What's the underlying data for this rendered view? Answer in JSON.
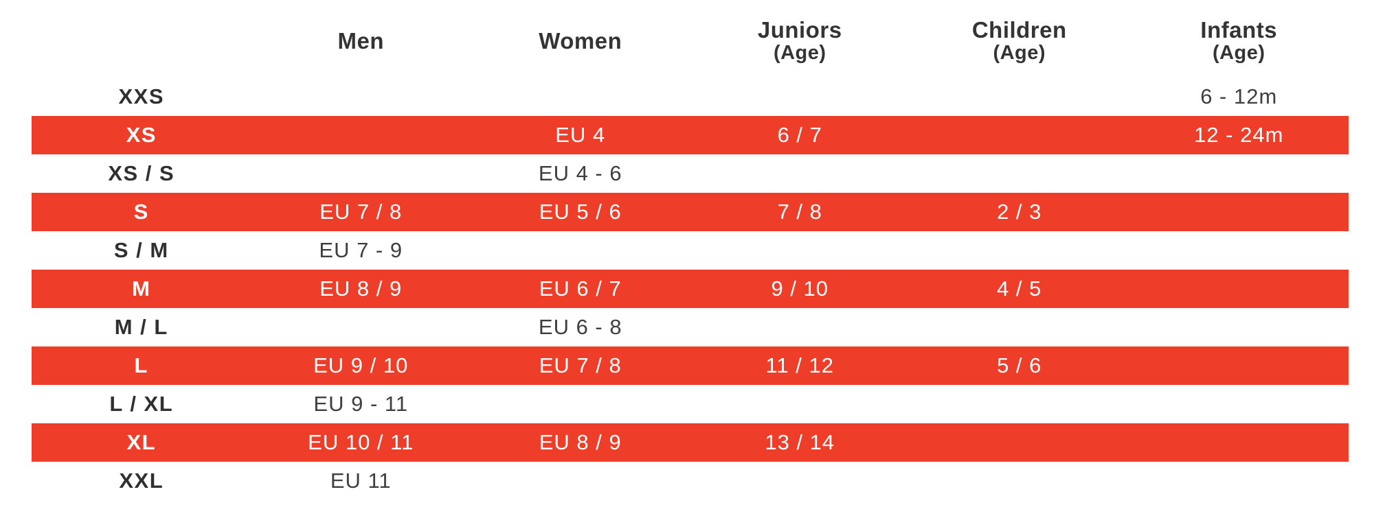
{
  "accent_color": "#EE3E29",
  "text_color": "#3E3E3E",
  "chart_data": {
    "type": "table",
    "columns": [
      {
        "label": "",
        "sublabel": ""
      },
      {
        "label": "Men",
        "sublabel": ""
      },
      {
        "label": "Women",
        "sublabel": ""
      },
      {
        "label": "Juniors",
        "sublabel": "(Age)"
      },
      {
        "label": "Children",
        "sublabel": "(Age)"
      },
      {
        "label": "Infants",
        "sublabel": "(Age)"
      }
    ],
    "rows": [
      {
        "size": "XXS",
        "highlighted": false,
        "values": [
          "",
          "",
          "",
          "",
          "6 - 12m"
        ]
      },
      {
        "size": "XS",
        "highlighted": true,
        "values": [
          "",
          "EU 4",
          "6 / 7",
          "",
          "12 - 24m"
        ]
      },
      {
        "size": "XS / S",
        "highlighted": false,
        "values": [
          "",
          "EU 4 - 6",
          "",
          "",
          ""
        ]
      },
      {
        "size": "S",
        "highlighted": true,
        "values": [
          "EU 7 / 8",
          "EU 5 / 6",
          "7 / 8",
          "2 / 3",
          ""
        ]
      },
      {
        "size": "S / M",
        "highlighted": false,
        "values": [
          "EU 7 - 9",
          "",
          "",
          "",
          ""
        ]
      },
      {
        "size": "M",
        "highlighted": true,
        "values": [
          "EU 8 / 9",
          "EU 6 / 7",
          "9 / 10",
          "4 / 5",
          ""
        ]
      },
      {
        "size": "M / L",
        "highlighted": false,
        "values": [
          "",
          "EU 6 - 8",
          "",
          "",
          ""
        ]
      },
      {
        "size": "L",
        "highlighted": true,
        "values": [
          "EU 9 / 10",
          "EU 7 / 8",
          "11 / 12",
          "5 / 6",
          ""
        ]
      },
      {
        "size": "L / XL",
        "highlighted": false,
        "values": [
          "EU 9 - 11",
          "",
          "",
          "",
          ""
        ]
      },
      {
        "size": "XL",
        "highlighted": true,
        "values": [
          "EU 10 / 11",
          "EU 8 / 9",
          "13 / 14",
          "",
          ""
        ]
      },
      {
        "size": "XXL",
        "highlighted": false,
        "values": [
          "EU 11",
          "",
          "",
          "",
          ""
        ]
      }
    ]
  }
}
